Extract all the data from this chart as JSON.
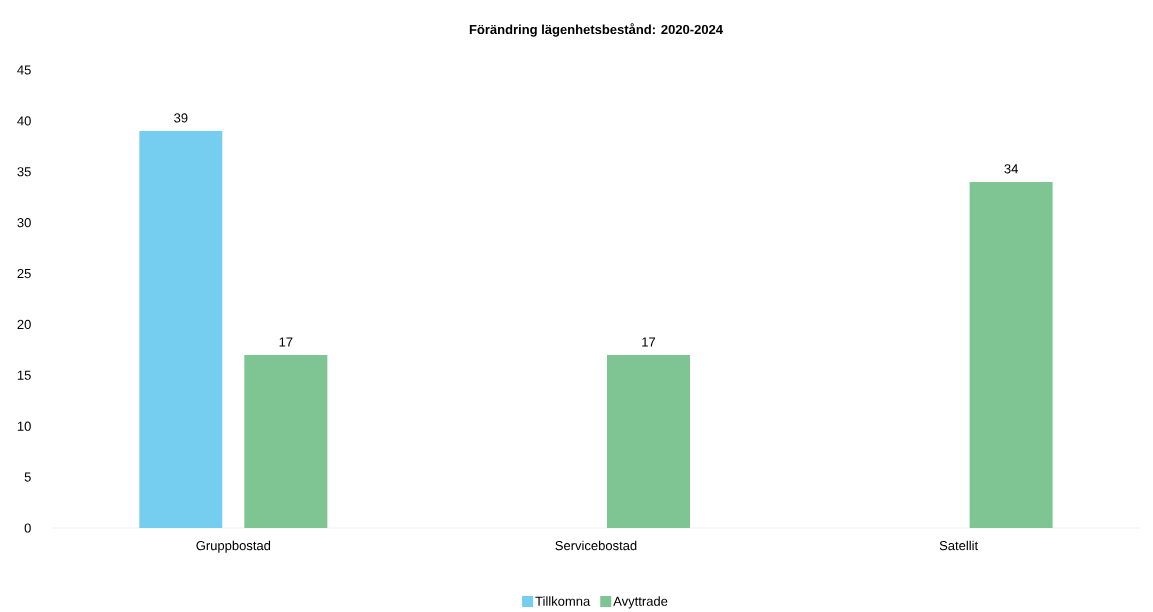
{
  "chart_data": {
    "type": "bar",
    "title": "Förändring lägenhetsbestånd: 2020-2024",
    "categories": [
      "Gruppbostad",
      "Servicebostad",
      "Satellit"
    ],
    "series": [
      {
        "name": "Tillkomna",
        "color": "#75cdf0",
        "values": [
          39,
          null,
          null
        ]
      },
      {
        "name": "Avyttrade",
        "color": "#7fc493",
        "values": [
          17,
          17,
          34
        ]
      }
    ],
    "ylim": [
      0,
      45
    ],
    "yticks": [
      0,
      5,
      10,
      15,
      20,
      25,
      30,
      35,
      40,
      45
    ],
    "data_labels": true,
    "grid": false,
    "legend": "bottom"
  }
}
